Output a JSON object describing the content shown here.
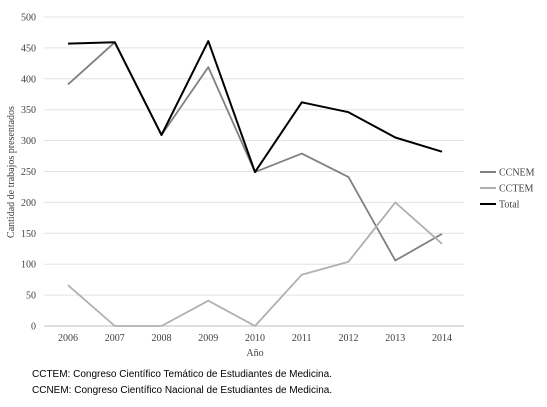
{
  "chart_data": {
    "type": "line",
    "title": "",
    "xlabel": "Año",
    "ylabel": "Cantidad de trabajos presentados",
    "ylim": [
      0,
      500
    ],
    "yticks": [
      0,
      50,
      100,
      150,
      200,
      250,
      300,
      350,
      400,
      450,
      500
    ],
    "categories": [
      "2006",
      "2007",
      "2008",
      "2009",
      "2010",
      "2011",
      "2012",
      "2013",
      "2014"
    ],
    "grid": "horizontal",
    "legend_position": "right",
    "series": [
      {
        "name": "CCNEM",
        "color": "#808080",
        "values": [
          391,
          459,
          309,
          419,
          249,
          279,
          241,
          106,
          149
        ]
      },
      {
        "name": "CCTEM",
        "color": "#b0b0b0",
        "values": [
          66,
          0,
          0,
          41,
          0,
          83,
          104,
          200,
          133
        ]
      },
      {
        "name": "Total",
        "color": "#000000",
        "values": [
          457,
          459,
          309,
          461,
          249,
          362,
          346,
          305,
          282
        ]
      }
    ]
  },
  "footnotes": [
    "CCTEM: Congreso Científico Temático de Estudiantes de Medicina.",
    "CCNEM: Congreso Científico Nacional de Estudiantes de Medicina."
  ]
}
